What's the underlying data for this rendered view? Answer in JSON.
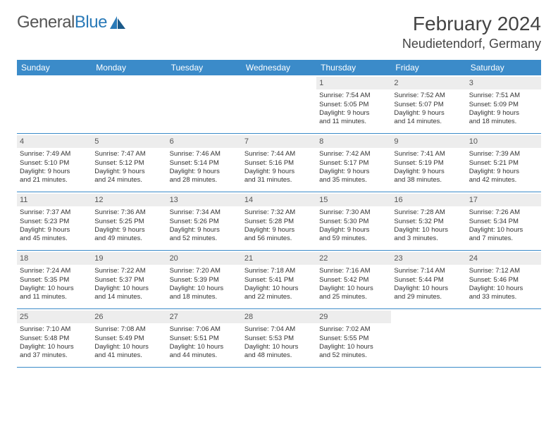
{
  "brand": {
    "part1": "General",
    "part2": "Blue"
  },
  "title": "February 2024",
  "location": "Neudietendorf, Germany",
  "colors": {
    "header_bar": "#3b8bc9",
    "daynum_bg": "#ededed",
    "border": "#3b8bc9",
    "logo_accent": "#2a7ab8",
    "text": "#333333",
    "title_text": "#444444"
  },
  "day_names": [
    "Sunday",
    "Monday",
    "Tuesday",
    "Wednesday",
    "Thursday",
    "Friday",
    "Saturday"
  ],
  "weeks": [
    [
      {
        "day": "",
        "empty": true
      },
      {
        "day": "",
        "empty": true
      },
      {
        "day": "",
        "empty": true
      },
      {
        "day": "",
        "empty": true
      },
      {
        "day": "1",
        "sunrise": "Sunrise: 7:54 AM",
        "sunset": "Sunset: 5:05 PM",
        "dl1": "Daylight: 9 hours",
        "dl2": "and 11 minutes."
      },
      {
        "day": "2",
        "sunrise": "Sunrise: 7:52 AM",
        "sunset": "Sunset: 5:07 PM",
        "dl1": "Daylight: 9 hours",
        "dl2": "and 14 minutes."
      },
      {
        "day": "3",
        "sunrise": "Sunrise: 7:51 AM",
        "sunset": "Sunset: 5:09 PM",
        "dl1": "Daylight: 9 hours",
        "dl2": "and 18 minutes."
      }
    ],
    [
      {
        "day": "4",
        "sunrise": "Sunrise: 7:49 AM",
        "sunset": "Sunset: 5:10 PM",
        "dl1": "Daylight: 9 hours",
        "dl2": "and 21 minutes."
      },
      {
        "day": "5",
        "sunrise": "Sunrise: 7:47 AM",
        "sunset": "Sunset: 5:12 PM",
        "dl1": "Daylight: 9 hours",
        "dl2": "and 24 minutes."
      },
      {
        "day": "6",
        "sunrise": "Sunrise: 7:46 AM",
        "sunset": "Sunset: 5:14 PM",
        "dl1": "Daylight: 9 hours",
        "dl2": "and 28 minutes."
      },
      {
        "day": "7",
        "sunrise": "Sunrise: 7:44 AM",
        "sunset": "Sunset: 5:16 PM",
        "dl1": "Daylight: 9 hours",
        "dl2": "and 31 minutes."
      },
      {
        "day": "8",
        "sunrise": "Sunrise: 7:42 AM",
        "sunset": "Sunset: 5:17 PM",
        "dl1": "Daylight: 9 hours",
        "dl2": "and 35 minutes."
      },
      {
        "day": "9",
        "sunrise": "Sunrise: 7:41 AM",
        "sunset": "Sunset: 5:19 PM",
        "dl1": "Daylight: 9 hours",
        "dl2": "and 38 minutes."
      },
      {
        "day": "10",
        "sunrise": "Sunrise: 7:39 AM",
        "sunset": "Sunset: 5:21 PM",
        "dl1": "Daylight: 9 hours",
        "dl2": "and 42 minutes."
      }
    ],
    [
      {
        "day": "11",
        "sunrise": "Sunrise: 7:37 AM",
        "sunset": "Sunset: 5:23 PM",
        "dl1": "Daylight: 9 hours",
        "dl2": "and 45 minutes."
      },
      {
        "day": "12",
        "sunrise": "Sunrise: 7:36 AM",
        "sunset": "Sunset: 5:25 PM",
        "dl1": "Daylight: 9 hours",
        "dl2": "and 49 minutes."
      },
      {
        "day": "13",
        "sunrise": "Sunrise: 7:34 AM",
        "sunset": "Sunset: 5:26 PM",
        "dl1": "Daylight: 9 hours",
        "dl2": "and 52 minutes."
      },
      {
        "day": "14",
        "sunrise": "Sunrise: 7:32 AM",
        "sunset": "Sunset: 5:28 PM",
        "dl1": "Daylight: 9 hours",
        "dl2": "and 56 minutes."
      },
      {
        "day": "15",
        "sunrise": "Sunrise: 7:30 AM",
        "sunset": "Sunset: 5:30 PM",
        "dl1": "Daylight: 9 hours",
        "dl2": "and 59 minutes."
      },
      {
        "day": "16",
        "sunrise": "Sunrise: 7:28 AM",
        "sunset": "Sunset: 5:32 PM",
        "dl1": "Daylight: 10 hours",
        "dl2": "and 3 minutes."
      },
      {
        "day": "17",
        "sunrise": "Sunrise: 7:26 AM",
        "sunset": "Sunset: 5:34 PM",
        "dl1": "Daylight: 10 hours",
        "dl2": "and 7 minutes."
      }
    ],
    [
      {
        "day": "18",
        "sunrise": "Sunrise: 7:24 AM",
        "sunset": "Sunset: 5:35 PM",
        "dl1": "Daylight: 10 hours",
        "dl2": "and 11 minutes."
      },
      {
        "day": "19",
        "sunrise": "Sunrise: 7:22 AM",
        "sunset": "Sunset: 5:37 PM",
        "dl1": "Daylight: 10 hours",
        "dl2": "and 14 minutes."
      },
      {
        "day": "20",
        "sunrise": "Sunrise: 7:20 AM",
        "sunset": "Sunset: 5:39 PM",
        "dl1": "Daylight: 10 hours",
        "dl2": "and 18 minutes."
      },
      {
        "day": "21",
        "sunrise": "Sunrise: 7:18 AM",
        "sunset": "Sunset: 5:41 PM",
        "dl1": "Daylight: 10 hours",
        "dl2": "and 22 minutes."
      },
      {
        "day": "22",
        "sunrise": "Sunrise: 7:16 AM",
        "sunset": "Sunset: 5:42 PM",
        "dl1": "Daylight: 10 hours",
        "dl2": "and 25 minutes."
      },
      {
        "day": "23",
        "sunrise": "Sunrise: 7:14 AM",
        "sunset": "Sunset: 5:44 PM",
        "dl1": "Daylight: 10 hours",
        "dl2": "and 29 minutes."
      },
      {
        "day": "24",
        "sunrise": "Sunrise: 7:12 AM",
        "sunset": "Sunset: 5:46 PM",
        "dl1": "Daylight: 10 hours",
        "dl2": "and 33 minutes."
      }
    ],
    [
      {
        "day": "25",
        "sunrise": "Sunrise: 7:10 AM",
        "sunset": "Sunset: 5:48 PM",
        "dl1": "Daylight: 10 hours",
        "dl2": "and 37 minutes."
      },
      {
        "day": "26",
        "sunrise": "Sunrise: 7:08 AM",
        "sunset": "Sunset: 5:49 PM",
        "dl1": "Daylight: 10 hours",
        "dl2": "and 41 minutes."
      },
      {
        "day": "27",
        "sunrise": "Sunrise: 7:06 AM",
        "sunset": "Sunset: 5:51 PM",
        "dl1": "Daylight: 10 hours",
        "dl2": "and 44 minutes."
      },
      {
        "day": "28",
        "sunrise": "Sunrise: 7:04 AM",
        "sunset": "Sunset: 5:53 PM",
        "dl1": "Daylight: 10 hours",
        "dl2": "and 48 minutes."
      },
      {
        "day": "29",
        "sunrise": "Sunrise: 7:02 AM",
        "sunset": "Sunset: 5:55 PM",
        "dl1": "Daylight: 10 hours",
        "dl2": "and 52 minutes."
      },
      {
        "day": "",
        "empty": true
      },
      {
        "day": "",
        "empty": true
      }
    ]
  ]
}
